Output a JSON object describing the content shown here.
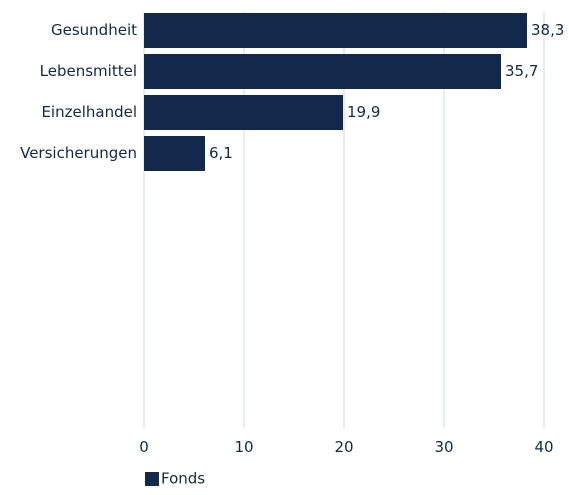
{
  "chart_data": {
    "type": "bar",
    "orientation": "horizontal",
    "categories": [
      "Gesundheit",
      "Lebensmittel",
      "Einzelhandel",
      "Versicherungen"
    ],
    "series": [
      {
        "name": "Fonds",
        "values": [
          38.3,
          35.7,
          19.9,
          6.1
        ],
        "value_labels": [
          "38,3",
          "35,7",
          "19,9",
          "6,1"
        ],
        "color": "#13294b"
      }
    ],
    "xlim": [
      0,
      40
    ],
    "xticks": [
      0,
      10,
      20,
      30,
      40
    ],
    "xtick_labels": [
      "0",
      "10",
      "20",
      "30",
      "40"
    ],
    "grid": "vertical",
    "grid_color": "#c9dbe6",
    "text_color": "#13294b",
    "legend_position": "bottom-left"
  }
}
